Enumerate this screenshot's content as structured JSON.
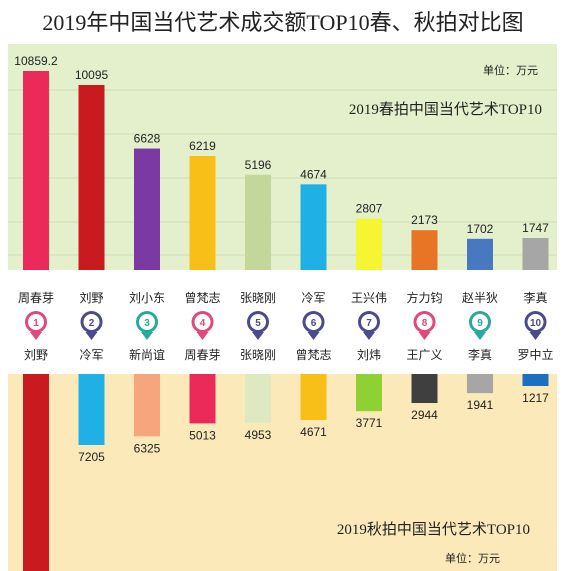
{
  "title": "2019年中国当代艺术成交额TOP10春、秋拍对比图",
  "chart_data": [
    {
      "type": "bar",
      "title": "2019春拍中国当代艺术TOP10",
      "unit": "单位：万元",
      "ranks": [
        "1",
        "2",
        "3",
        "4",
        "5",
        "6",
        "7",
        "8",
        "9",
        "10"
      ],
      "categories": [
        "周春芽",
        "刘野",
        "刘小东",
        "曾梵志",
        "张晓刚",
        "冷军",
        "王兴伟",
        "方力钧",
        "赵半狄",
        "李真"
      ],
      "values": [
        10859.2,
        10095,
        6628,
        6219,
        5196,
        4674,
        2807,
        2173,
        1702,
        1747
      ],
      "value_labels": [
        "10859.2",
        "10095",
        "6628",
        "6219",
        "5196",
        "4674",
        "2807",
        "2173",
        "1702",
        "1747"
      ],
      "colors": [
        "#ec2a5a",
        "#c91a20",
        "#7b3aa3",
        "#f7bf17",
        "#c3d79a",
        "#1fb1e6",
        "#f5f531",
        "#e87425",
        "#4778c0",
        "#a6a6a6"
      ],
      "background": "#e4f0cc",
      "grid": true
    },
    {
      "type": "bar",
      "title": "2019秋拍中国当代艺术TOP10",
      "unit": "单位：万元",
      "categories": [
        "刘野",
        "冷军",
        "新尚谊",
        "周春芽",
        "张晓刚",
        "曾梵志",
        "刘炜",
        "王广义",
        "李真",
        "罗中立"
      ],
      "values": [
        null,
        7205,
        6325,
        5013,
        4953,
        4671,
        3771,
        2944,
        1941,
        1217
      ],
      "value_labels": [
        "",
        "7205",
        "6325",
        "5013",
        "4953",
        "4671",
        "3771",
        "2944",
        "1941",
        "1217"
      ],
      "colors": [
        "#c91a20",
        "#1fb1e6",
        "#f7a57c",
        "#ec2a5a",
        "#dfe9c1",
        "#f7bf17",
        "#8fd134",
        "#3f3f3f",
        "#a6a6a6",
        "#1b6fc1"
      ],
      "background": "#fbe9b9"
    }
  ],
  "marker_colors": [
    "#e0497a",
    "#4a4a8c",
    "#27a9a0",
    "#e0497a",
    "#4a4a8c",
    "#4a4a8c",
    "#4a4a8c",
    "#e0497a",
    "#27a9a0",
    "#4a4a8c"
  ]
}
